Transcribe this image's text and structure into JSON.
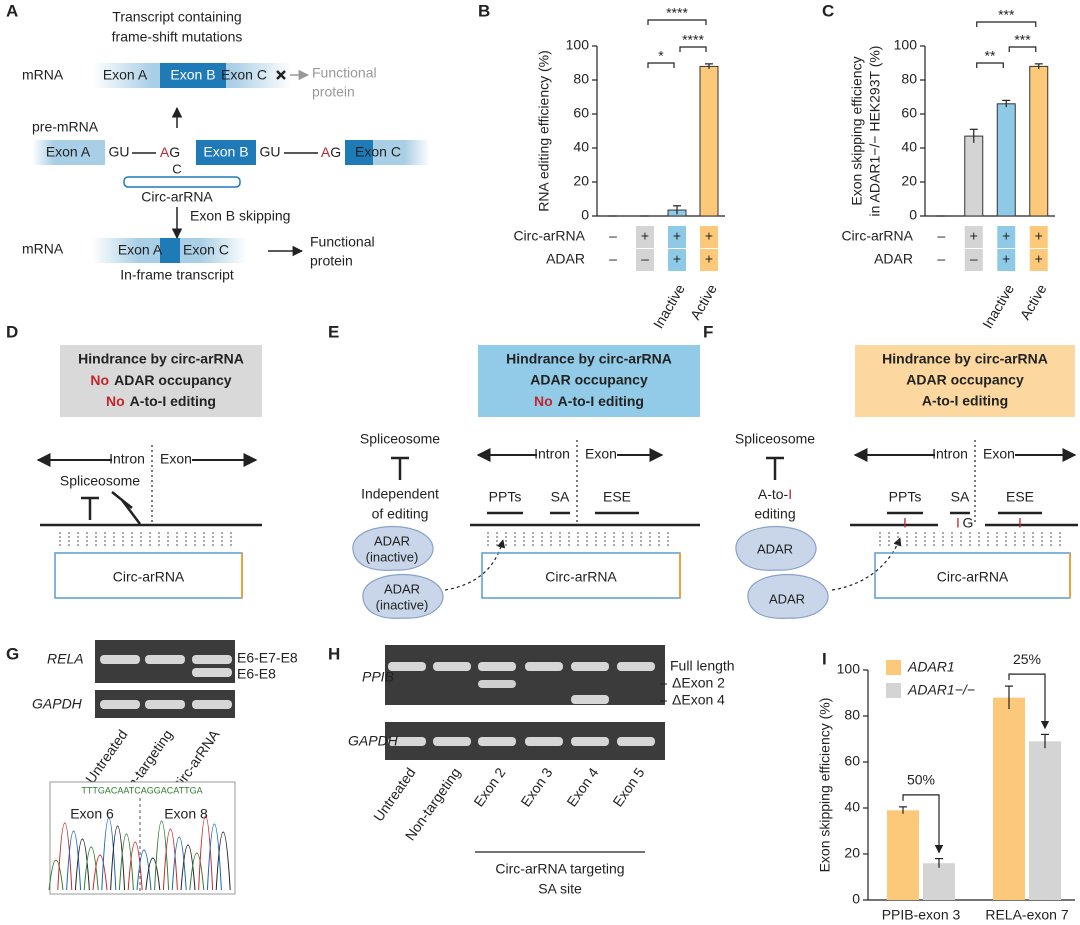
{
  "chart_data": [
    {
      "type": "bar",
      "label": "B",
      "ylabel": "RNA editing efficiency (%)",
      "categories": [
        null,
        null,
        "Inactive",
        "Active"
      ],
      "values": [
        0,
        0,
        3.5,
        88
      ],
      "errors": [
        0,
        0,
        2.5,
        1.5
      ],
      "colors": [
        "#bfbfbf",
        "#d4d4d4",
        "#8ecae6",
        "#fcc97a"
      ],
      "ylim": [
        0,
        100
      ],
      "yticks": [
        0,
        20,
        40,
        60,
        80,
        100
      ],
      "conditions": [
        {
          "name": "Circ-arRNA",
          "signs": [
            "–",
            "+",
            "+",
            "+"
          ]
        },
        {
          "name": "ADAR",
          "signs": [
            "–",
            "–",
            "+",
            "+"
          ]
        }
      ],
      "significance": [
        "****",
        "****",
        "*"
      ]
    },
    {
      "type": "bar",
      "label": "C",
      "ylabel": [
        "Exon skipping efficiency",
        "in ADAR1−/− HEK293T (%)"
      ],
      "categories": [
        null,
        null,
        "Inactive",
        "Active"
      ],
      "values": [
        0,
        47,
        66,
        88
      ],
      "errors": [
        0,
        4,
        2,
        1.5
      ],
      "colors": [
        "#bfbfbf",
        "#d4d4d4",
        "#8ecae6",
        "#fcc97a"
      ],
      "ylim": [
        0,
        100
      ],
      "yticks": [
        0,
        20,
        40,
        60,
        80,
        100
      ],
      "conditions": [
        {
          "name": "Circ-arRNA",
          "signs": [
            "–",
            "+",
            "+",
            "+"
          ]
        },
        {
          "name": "ADAR",
          "signs": [
            "–",
            "–",
            "+",
            "+"
          ]
        }
      ],
      "significance": [
        "***",
        "***",
        "**"
      ]
    },
    {
      "type": "grouped-bar",
      "label": "I",
      "ylabel": "Exon skipping efficiency (%)",
      "categories": [
        "PPIB-exon 3",
        "RELA-exon 7"
      ],
      "series": [
        {
          "name": "ADAR1",
          "color": "#fcc97a",
          "values": [
            39,
            88
          ],
          "errors": [
            1.5,
            5
          ]
        },
        {
          "name": "ADAR1−/−",
          "color": "#d4d4d4",
          "values": [
            16,
            69
          ],
          "errors": [
            2,
            3
          ]
        }
      ],
      "ylim": [
        0,
        100
      ],
      "yticks": [
        0,
        20,
        40,
        60,
        80,
        100
      ],
      "annotations": [
        "50%",
        "25%"
      ]
    }
  ],
  "panel_a": {
    "label": "A",
    "caption": [
      "Transcript containing",
      "frame-shift mutations"
    ],
    "mrna": "mRNA",
    "exons": [
      "Exon A",
      "Exon B",
      "Exon C"
    ],
    "lost_protein": [
      "Functional",
      "protein"
    ],
    "pre_mrna": "pre-mRNA",
    "donor": "GU",
    "acceptor": [
      "A",
      "G"
    ],
    "pair": "C",
    "circ": "Circ-arRNA",
    "skipping": "Exon B skipping",
    "in_frame": "In-frame transcript",
    "protein": [
      "Functional",
      "protein"
    ]
  },
  "panel_d": {
    "label": "D",
    "box": [
      "Hindrance by circ-arRNA",
      [
        "No",
        "ADAR occupancy"
      ],
      [
        "No",
        "A-to-I editing"
      ]
    ],
    "intron": "Intron",
    "exon": "Exon",
    "spliceosome": "Spliceosome",
    "circ": "Circ-arRNA"
  },
  "panel_e": {
    "label": "E",
    "box": [
      "Hindrance by circ-arRNA",
      "ADAR occupancy",
      [
        "No",
        "A-to-I editing"
      ]
    ],
    "spliceosome": "Spliceosome",
    "independent": [
      "Independent",
      "of editing"
    ],
    "adar": [
      "ADAR",
      "(inactive)"
    ],
    "intron": "Intron",
    "exon": "Exon",
    "sites": [
      "PPTs",
      "SA",
      "ESE"
    ],
    "circ": "Circ-arRNA"
  },
  "panel_f": {
    "label": "F",
    "box": [
      "Hindrance by circ-arRNA",
      "ADAR occupancy",
      "A-to-I editing"
    ],
    "spliceosome": "Spliceosome",
    "editing": [
      [
        "A-to-",
        "I"
      ],
      "editing"
    ],
    "adar": "ADAR",
    "intron": "Intron",
    "exon": "Exon",
    "sites": [
      "PPTs",
      "SA",
      "ESE"
    ],
    "inosine": "I",
    "guanosine": "G",
    "circ": "Circ-arRNA"
  },
  "panel_g": {
    "label": "G",
    "gene": "RELA",
    "control": "GAPDH",
    "products": [
      "E6-E7-E8",
      "E6-E8"
    ],
    "lanes": [
      "Untreated",
      "Non-targeting",
      "Circ-arRNA"
    ],
    "sequence": "TTTGACAATCAGGACATTGA",
    "exons": [
      "Exon 6",
      "Exon 8"
    ]
  },
  "panel_h": {
    "label": "H",
    "gene": "PPIB",
    "control": "GAPDH",
    "products": [
      "Full length",
      "ΔExon 2",
      "ΔExon 4"
    ],
    "lanes": [
      "Untreated",
      "Non-targeting",
      "Exon 2",
      "Exon 3",
      "Exon 4",
      "Exon 5"
    ],
    "group": [
      "Circ-arRNA targeting",
      "SA site"
    ]
  }
}
